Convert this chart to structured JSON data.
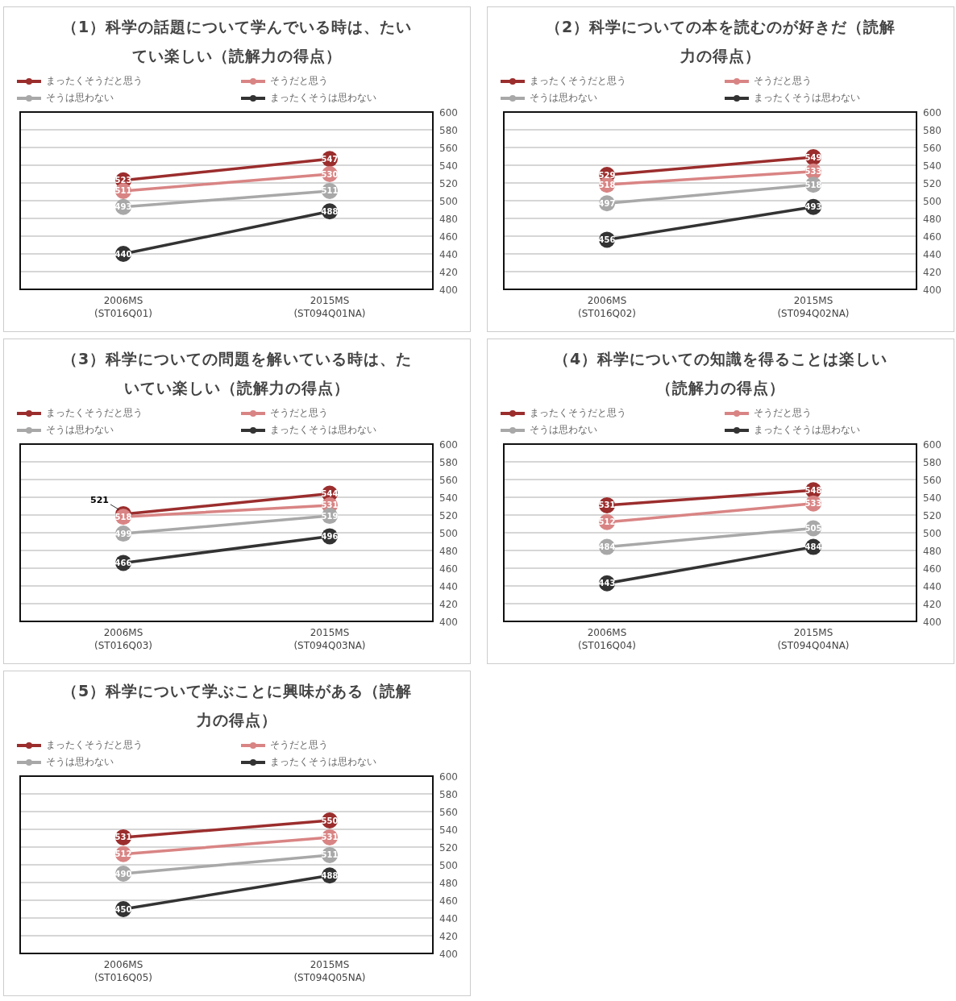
{
  "chart_data": [
    {
      "type": "line",
      "title": "（1）科学の話題について学んでいる時は、たいてい楽しい（読解力の得点）",
      "categories": [
        "2006MS (ST016Q01)",
        "2015MS (ST094Q01NA)"
      ],
      "ylim": [
        400,
        600
      ],
      "yticks": [
        400,
        420,
        440,
        460,
        480,
        500,
        520,
        540,
        560,
        580,
        600
      ],
      "grid": "y",
      "legend": "top",
      "marker": "circle",
      "data_labels": true,
      "series": [
        {
          "name": "まったくそうだと思う",
          "color": "#9b2d2d",
          "values": [
            523,
            547
          ]
        },
        {
          "name": "そうだと思う",
          "color": "#d98484",
          "values": [
            511,
            530
          ]
        },
        {
          "name": "そうは思わない",
          "color": "#a8a8a8",
          "values": [
            493,
            511
          ]
        },
        {
          "name": "まったくそうは思わない",
          "color": "#333333",
          "values": [
            440,
            488
          ]
        }
      ]
    },
    {
      "type": "line",
      "title": "（2）科学についての本を読むのが好きだ（読解力の得点）",
      "categories": [
        "2006MS (ST016Q02)",
        "2015MS (ST094Q02NA)"
      ],
      "ylim": [
        400,
        600
      ],
      "yticks": [
        400,
        420,
        440,
        460,
        480,
        500,
        520,
        540,
        560,
        580,
        600
      ],
      "grid": "y",
      "legend": "top",
      "marker": "circle",
      "data_labels": true,
      "series": [
        {
          "name": "まったくそうだと思う",
          "color": "#9b2d2d",
          "values": [
            529,
            549
          ]
        },
        {
          "name": "そうだと思う",
          "color": "#d98484",
          "values": [
            518,
            533
          ]
        },
        {
          "name": "そうは思わない",
          "color": "#a8a8a8",
          "values": [
            497,
            518
          ]
        },
        {
          "name": "まったくそうは思わない",
          "color": "#333333",
          "values": [
            456,
            493
          ]
        }
      ]
    },
    {
      "type": "line",
      "title": "（3）科学についての問題を解いている時は、たいてい楽しい（読解力の得点）",
      "categories": [
        "2006MS (ST016Q03)",
        "2015MS (ST094Q03NA)"
      ],
      "ylim": [
        400,
        600
      ],
      "yticks": [
        400,
        420,
        440,
        460,
        480,
        500,
        520,
        540,
        560,
        580,
        600
      ],
      "grid": "y",
      "legend": "top",
      "marker": "circle",
      "data_labels": true,
      "series": [
        {
          "name": "まったくそうだと思う",
          "color": "#9b2d2d",
          "values": [
            521,
            544
          ]
        },
        {
          "name": "そうだと思う",
          "color": "#d98484",
          "values": [
            518,
            531
          ]
        },
        {
          "name": "そうは思わない",
          "color": "#a8a8a8",
          "values": [
            499,
            519
          ]
        },
        {
          "name": "まったくそうは思わない",
          "color": "#333333",
          "values": [
            466,
            496
          ]
        }
      ]
    },
    {
      "type": "line",
      "title": "（4）科学についての知識を得ることは楽しい（読解力の得点）",
      "categories": [
        "2006MS (ST016Q04)",
        "2015MS (ST094Q04NA)"
      ],
      "ylim": [
        400,
        600
      ],
      "yticks": [
        400,
        420,
        440,
        460,
        480,
        500,
        520,
        540,
        560,
        580,
        600
      ],
      "grid": "y",
      "legend": "top",
      "marker": "circle",
      "data_labels": true,
      "series": [
        {
          "name": "まったくそうだと思う",
          "color": "#9b2d2d",
          "values": [
            531,
            548
          ]
        },
        {
          "name": "そうだと思う",
          "color": "#d98484",
          "values": [
            512,
            533
          ]
        },
        {
          "name": "そうは思わない",
          "color": "#a8a8a8",
          "values": [
            484,
            505
          ]
        },
        {
          "name": "まったくそうは思わない",
          "color": "#333333",
          "values": [
            443,
            484
          ]
        }
      ]
    },
    {
      "type": "line",
      "title": "（5）科学について学ぶことに興味がある（読解力の得点）",
      "categories": [
        "2006MS (ST016Q05)",
        "2015MS (ST094Q05NA)"
      ],
      "ylim": [
        400,
        600
      ],
      "yticks": [
        400,
        420,
        440,
        460,
        480,
        500,
        520,
        540,
        560,
        580,
        600
      ],
      "grid": "y",
      "legend": "top",
      "marker": "circle",
      "data_labels": true,
      "series": [
        {
          "name": "まったくそうだと思う",
          "color": "#9b2d2d",
          "values": [
            531,
            550
          ]
        },
        {
          "name": "そうだと思う",
          "color": "#d98484",
          "values": [
            512,
            531
          ]
        },
        {
          "name": "そうは思わない",
          "color": "#a8a8a8",
          "values": [
            490,
            511
          ]
        },
        {
          "name": "まったくそうは思わない",
          "color": "#333333",
          "values": [
            450,
            488
          ]
        }
      ]
    }
  ]
}
